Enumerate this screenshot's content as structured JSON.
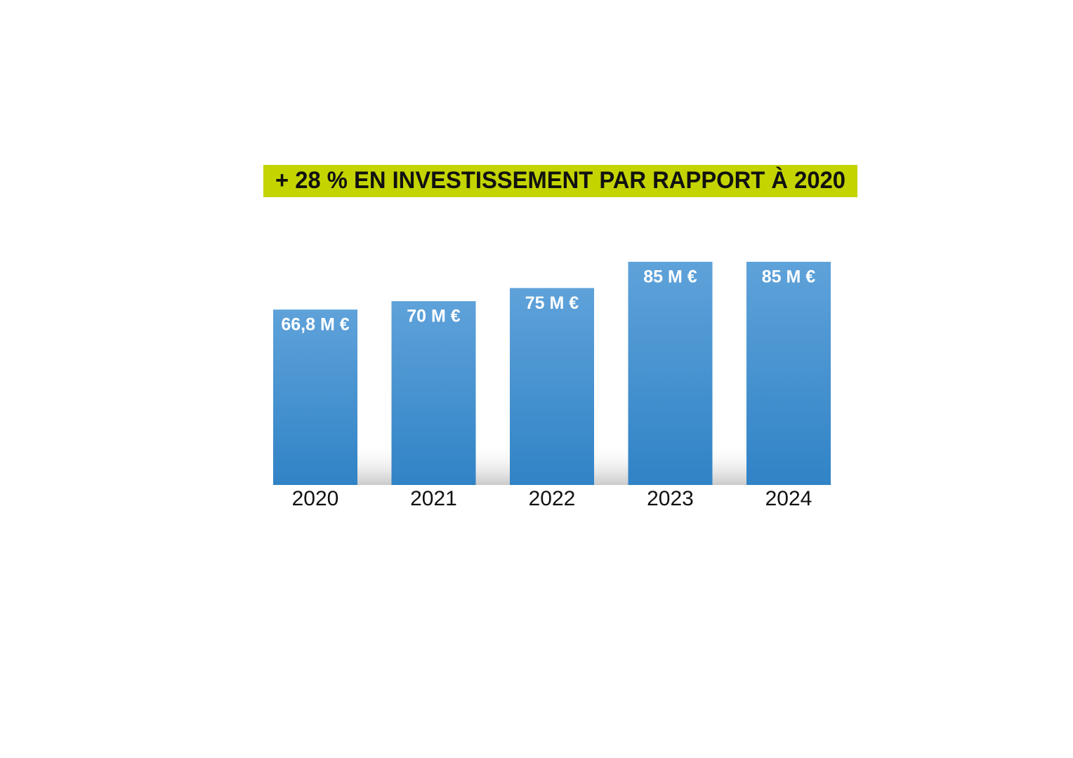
{
  "chart_data": {
    "type": "bar",
    "title": "+ 28 % EN INVESTISSEMENT PAR RAPPORT À 2020",
    "categories": [
      "2020",
      "2021",
      "2022",
      "2023",
      "2024"
    ],
    "values": [
      66.8,
      70,
      75,
      85,
      85
    ],
    "value_labels": [
      "66,8 M €",
      "70 M €",
      "75 M €",
      "85 M €",
      "85 M €"
    ],
    "color": "#4a93d2"
  }
}
